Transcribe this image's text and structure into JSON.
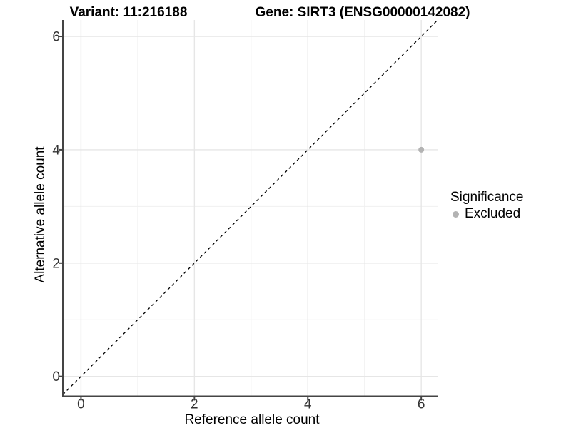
{
  "titles": {
    "variant": "Variant: 11:216188",
    "gene": "Gene: SIRT3 (ENSG00000142082)"
  },
  "legend": {
    "title": "Significance",
    "entries": [
      {
        "label": "Excluded",
        "color": "#b3b3b3"
      }
    ]
  },
  "chart_data": {
    "type": "scatter",
    "title": "Variant: 11:216188  Gene: SIRT3 (ENSG00000142082)",
    "xlabel": "Reference allele count",
    "ylabel": "Alternative allele count",
    "xlim": [
      -0.32,
      6.3
    ],
    "ylim": [
      -0.35,
      6.29
    ],
    "xticks": [
      0,
      2,
      4,
      6
    ],
    "yticks": [
      0,
      2,
      4,
      6
    ],
    "xminor": [
      1,
      3,
      5
    ],
    "yminor": [
      1,
      3,
      5
    ],
    "grid": "on",
    "legend_position": "right",
    "identity_line": {
      "style": "dashed",
      "slope": 1,
      "intercept": 0,
      "color": "#000000"
    },
    "series": [
      {
        "name": "Excluded",
        "color": "#b3b3b3",
        "points": [
          {
            "x": 6,
            "y": 4
          }
        ]
      }
    ],
    "colors": {
      "axis": "#444444",
      "tick_label": "#333333",
      "grid_major": "#e6e6e6",
      "grid_minor": "#f0f0f0",
      "background": "#ffffff"
    }
  }
}
